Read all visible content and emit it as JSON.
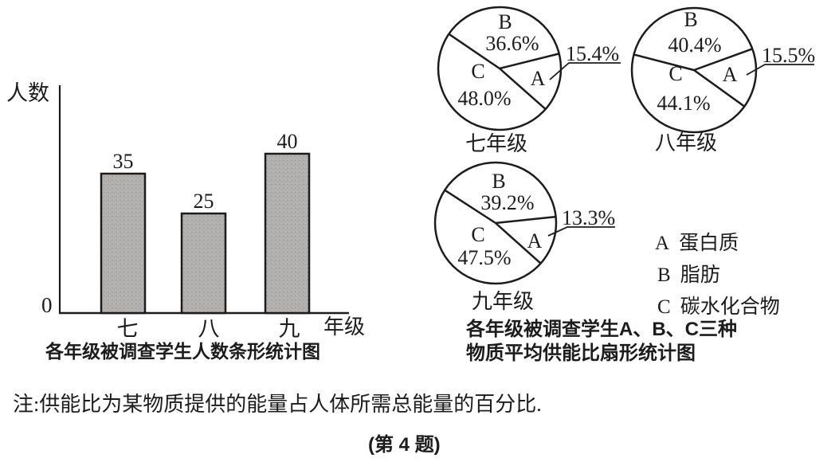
{
  "chart_data": [
    {
      "type": "bar",
      "title": "各年级被调查学生人数条形统计图",
      "xlabel": "年级",
      "ylabel": "人数",
      "origin_label": "0",
      "categories": [
        "七",
        "八",
        "九"
      ],
      "values": [
        35,
        25,
        40
      ],
      "ylim": [
        0,
        40
      ],
      "grid": false,
      "legend_position": "none"
    },
    {
      "type": "pie",
      "title_lines": [
        "各年级被调查学生A、B、C三种",
        "物质平均供能比扇形统计图"
      ],
      "legend": [
        {
          "key": "A",
          "label": "蛋白质"
        },
        {
          "key": "B",
          "label": "脂肪"
        },
        {
          "key": "C",
          "label": "碳水化合物"
        }
      ],
      "pies": [
        {
          "name": "七年级",
          "slices": [
            {
              "label": "A",
              "pct": 15.4,
              "display": "15.4%"
            },
            {
              "label": "B",
              "pct": 36.6,
              "display": "36.6%"
            },
            {
              "label": "C",
              "pct": 48.0,
              "display": "48.0%"
            }
          ]
        },
        {
          "name": "八年级",
          "slices": [
            {
              "label": "A",
              "pct": 15.5,
              "display": "15.5%"
            },
            {
              "label": "B",
              "pct": 40.4,
              "display": "40.4%"
            },
            {
              "label": "C",
              "pct": 44.1,
              "display": "44.1%"
            }
          ]
        },
        {
          "name": "九年级",
          "slices": [
            {
              "label": "A",
              "pct": 13.3,
              "display": "13.3%"
            },
            {
              "label": "B",
              "pct": 39.2,
              "display": "39.2%"
            },
            {
              "label": "C",
              "pct": 47.5,
              "display": "47.5%"
            }
          ]
        }
      ]
    }
  ],
  "footer": {
    "note": "注:供能比为某物质提供的能量占人体所需总能量的百分比.",
    "problem_label": "(第 4 题)"
  },
  "colors": {
    "ink": "#1c1c1c",
    "bar_fill": "#b4b2b0",
    "background": "#ffffff"
  }
}
